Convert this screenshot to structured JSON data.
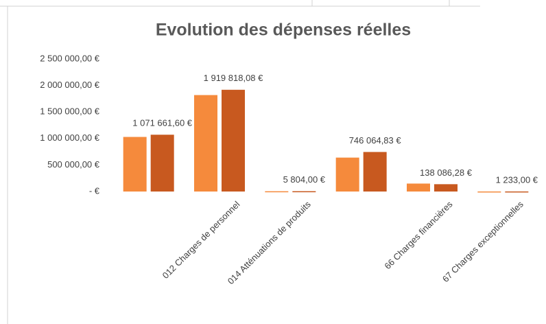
{
  "chart_data": {
    "type": "bar",
    "title": "Evolution des dépenses réelles",
    "categories": [
      null,
      "012 Charges de personnel",
      "014 Atténuations de produits",
      null,
      "66 Charges financières",
      "67 Charges exceptionnelles"
    ],
    "series": [
      {
        "color": "#f58a3c",
        "values": [
          1030000,
          1820000,
          5000,
          640000,
          150000,
          1000
        ]
      },
      {
        "color": "#c8591f",
        "values": [
          1071661.6,
          1919818.08,
          5804.0,
          746064.83,
          138086.28,
          1233.0
        ],
        "value_labels": [
          "1 071 661,60 €",
          "1 919 818,08 €",
          "5 804,00 €",
          "746 064,83 €",
          "138 086,28 €",
          "1 233,00 €"
        ]
      }
    ],
    "ylim": [
      0,
      2500000
    ],
    "yticks": [
      {
        "value": 0,
        "label": "-  €"
      },
      {
        "value": 500000,
        "label": "500 000,00 €"
      },
      {
        "value": 1000000,
        "label": "1 000 000,00 €"
      },
      {
        "value": 1500000,
        "label": "1 500 000,00 €"
      },
      {
        "value": 2000000,
        "label": "2 000 000,00 €"
      },
      {
        "value": 2500000,
        "label": "2 500 000,00 €"
      }
    ],
    "grid": false
  }
}
